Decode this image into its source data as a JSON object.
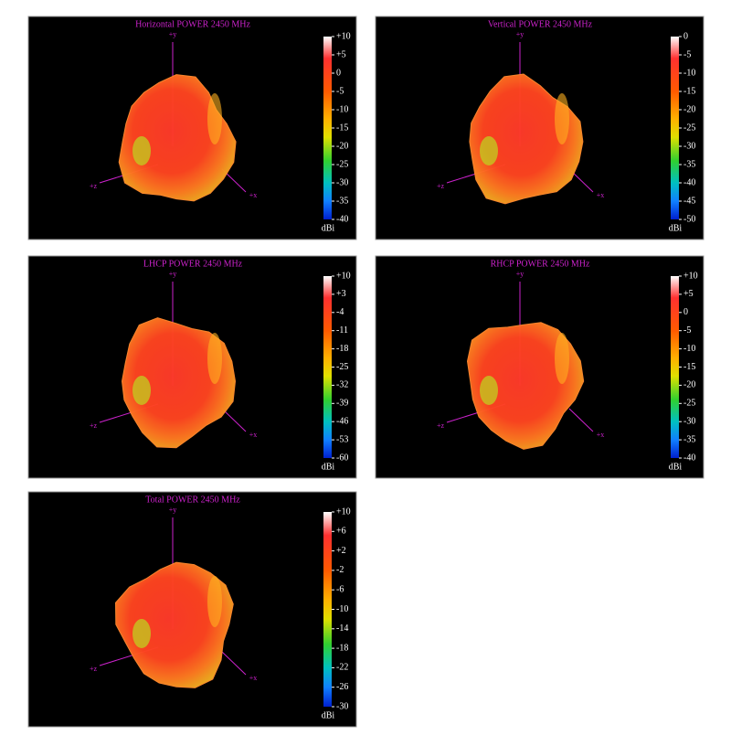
{
  "chart_data": [
    {
      "type": "surface3d",
      "title": "Horizontal POWER 2450  MHz",
      "axes": [
        "+y",
        "+z",
        "+x"
      ],
      "colorbar": {
        "label": "dBi",
        "lim": [
          -40,
          10
        ],
        "ticks": [
          {
            "value": 10,
            "label": "+10"
          },
          {
            "value": 5,
            "label": "+5"
          },
          0,
          -5,
          -10,
          -15,
          -20,
          -25,
          -30,
          -35,
          -40
        ]
      }
    },
    {
      "type": "surface3d",
      "title": "Vertical POWER 2450  MHz",
      "axes": [
        "+y",
        "+z",
        "+x"
      ],
      "colorbar": {
        "label": "dBi",
        "lim": [
          -50,
          0
        ],
        "ticks": [
          0,
          -5,
          -10,
          -15,
          -20,
          -25,
          -30,
          -35,
          -40,
          -45,
          -50
        ]
      }
    },
    {
      "type": "surface3d",
      "title": "LHCP POWER 2450  MHz",
      "axes": [
        "+y",
        "+z",
        "+x"
      ],
      "colorbar": {
        "label": "dBi",
        "lim": [
          -60,
          10
        ],
        "ticks": [
          {
            "value": 10,
            "label": "+10"
          },
          {
            "value": 3,
            "label": "+3"
          },
          -4,
          -11,
          -18,
          -25,
          -32,
          -39,
          -46,
          -53,
          -60
        ]
      }
    },
    {
      "type": "surface3d",
      "title": "RHCP POWER 2450  MHz",
      "axes": [
        "+y",
        "+z",
        "+x"
      ],
      "colorbar": {
        "label": "dBi",
        "lim": [
          -40,
          10
        ],
        "ticks": [
          {
            "value": 10,
            "label": "+10"
          },
          {
            "value": 5,
            "label": "+5"
          },
          0,
          -5,
          -10,
          -15,
          -20,
          -25,
          -30,
          -35,
          -40
        ]
      }
    },
    {
      "type": "surface3d",
      "title": "Total POWER 2450  MHz",
      "axes": [
        "+y",
        "+z",
        "+x"
      ],
      "colorbar": {
        "label": "dBi",
        "lim": [
          -30,
          10
        ],
        "ticks": [
          {
            "value": 10,
            "label": "+10"
          },
          {
            "value": 6,
            "label": "+6"
          },
          {
            "value": 2,
            "label": "+2"
          },
          -2,
          -6,
          -10,
          -14,
          -18,
          -22,
          -26,
          -30
        ]
      }
    }
  ]
}
